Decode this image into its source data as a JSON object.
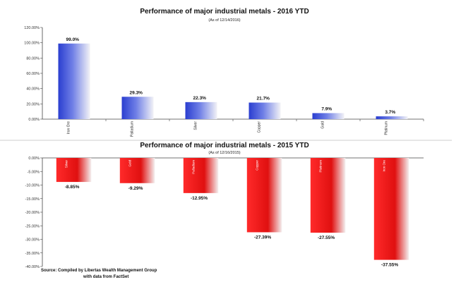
{
  "chart_data": [
    {
      "type": "bar",
      "title": "Performance of major industrial metals - 2016 YTD",
      "subtitle": "(As of 12/14/2016)",
      "categories": [
        "Iron Ore",
        "Palladium",
        "Silver",
        "Copper",
        "Gold",
        "Platinum"
      ],
      "values": [
        99.0,
        29.3,
        22.3,
        21.7,
        7.9,
        3.7
      ],
      "value_labels": [
        "99.0%",
        "29.3%",
        "22.3%",
        "21.7%",
        "7.9%",
        "3.7%"
      ],
      "y_ticks": [
        "0.00%",
        "20.00%",
        "40.00%",
        "60.00%",
        "80.00%",
        "100.00%",
        "120.00%"
      ],
      "ylim": [
        0,
        120
      ],
      "bar_color": "#3348d8",
      "grid": false
    },
    {
      "type": "bar",
      "title": "Performance of major industrial metals - 2015 YTD",
      "subtitle": "(As of 12/16/2015)",
      "categories": [
        "Silver",
        "Gold",
        "Palladium",
        "Copper",
        "Platinum",
        "Iron Ore"
      ],
      "values": [
        -8.85,
        -9.29,
        -12.95,
        -27.39,
        -27.55,
        -37.55
      ],
      "value_labels": [
        "-8.85%",
        "-9.29%",
        "-12.95%",
        "-27.39%",
        "-27.55%",
        "-37.55%"
      ],
      "y_ticks": [
        "0.00%",
        "-5.00%",
        "-10.00%",
        "-15.00%",
        "-20.00%",
        "-25.00%",
        "-30.00%",
        "-35.00%",
        "-40.00%"
      ],
      "ylim": [
        -40,
        0
      ],
      "bar_color": "#e81010",
      "grid": false
    }
  ],
  "source": {
    "line1": "Source:  Compiled by Libertas Wealth Management Group",
    "line2": "with data from FactSet"
  }
}
